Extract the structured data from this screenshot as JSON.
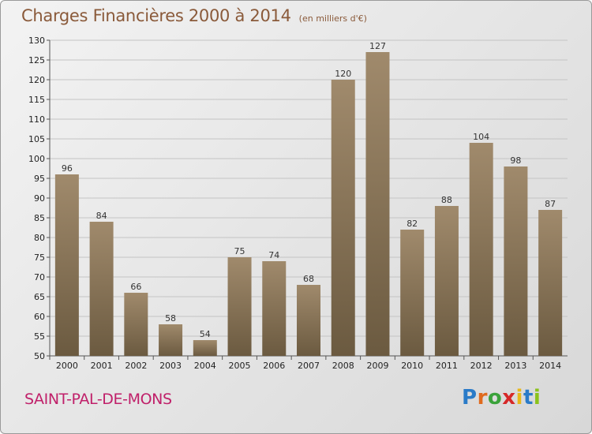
{
  "title": "Charges Financières 2000 à 2014",
  "unit": "(en milliers d'€)",
  "commune": "SAINT-PAL-DE-MONS",
  "logo": "Proxiti",
  "colors": {
    "bar_top": "#a08a6c",
    "bar_bottom": "#6b5a40",
    "title": "#8a5a3a",
    "commune": "#c0206a"
  },
  "chart_data": {
    "type": "bar",
    "categories": [
      "2000",
      "2001",
      "2002",
      "2003",
      "2004",
      "2005",
      "2006",
      "2007",
      "2008",
      "2009",
      "2010",
      "2011",
      "2012",
      "2013",
      "2014"
    ],
    "values": [
      96,
      84,
      66,
      58,
      54,
      75,
      74,
      68,
      120,
      127,
      82,
      88,
      104,
      98,
      87
    ],
    "title": "Charges Financières 2000 à 2014",
    "xlabel": "",
    "ylabel": "",
    "ylim": [
      50,
      130
    ],
    "yticks": [
      50,
      55,
      60,
      65,
      70,
      75,
      80,
      85,
      90,
      95,
      100,
      105,
      110,
      115,
      120,
      125,
      130
    ],
    "grid": true,
    "data_labels": true
  }
}
